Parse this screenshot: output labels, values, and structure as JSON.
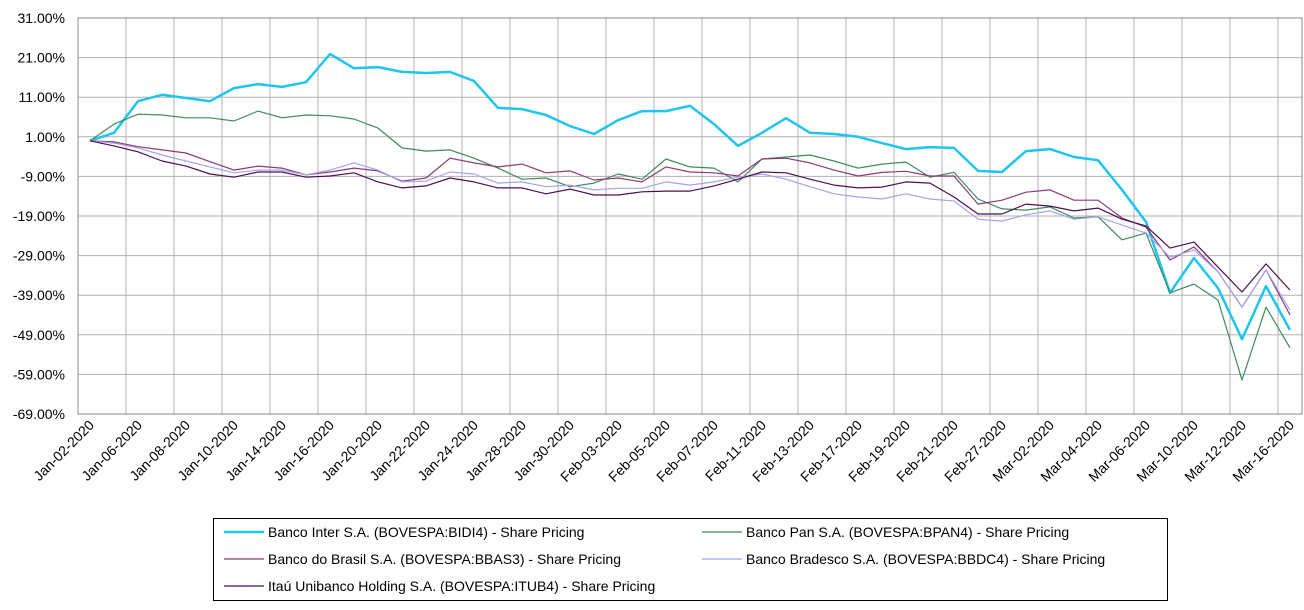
{
  "chart_data": {
    "type": "line",
    "title": "",
    "xlabel": "",
    "ylabel": "",
    "ylim": [
      -69,
      31
    ],
    "y_ticks": [
      "31.00%",
      "21.00%",
      "11.00%",
      "1.00%",
      "-9.00%",
      "-19.00%",
      "-29.00%",
      "-39.00%",
      "-49.00%",
      "-59.00%",
      "-69.00%"
    ],
    "y_tick_values": [
      31,
      21,
      11,
      1,
      -9,
      -19,
      -29,
      -39,
      -49,
      -59,
      -69
    ],
    "x_tick_labels": [
      "Jan-02-2020",
      "Jan-06-2020",
      "Jan-08-2020",
      "Jan-10-2020",
      "Jan-14-2020",
      "Jan-16-2020",
      "Jan-20-2020",
      "Jan-22-2020",
      "Jan-24-2020",
      "Jan-28-2020",
      "Jan-30-2020",
      "Feb-03-2020",
      "Feb-05-2020",
      "Feb-07-2020",
      "Feb-11-2020",
      "Feb-13-2020",
      "Feb-17-2020",
      "Feb-19-2020",
      "Feb-21-2020",
      "Feb-27-2020",
      "Mar-02-2020",
      "Mar-04-2020",
      "Mar-06-2020",
      "Mar-10-2020",
      "Mar-12-2020",
      "Mar-16-2020"
    ],
    "x": [
      "Jan-02-2020",
      "Jan-03-2020",
      "Jan-06-2020",
      "Jan-07-2020",
      "Jan-08-2020",
      "Jan-09-2020",
      "Jan-10-2020",
      "Jan-13-2020",
      "Jan-14-2020",
      "Jan-15-2020",
      "Jan-16-2020",
      "Jan-17-2020",
      "Jan-20-2020",
      "Jan-21-2020",
      "Jan-22-2020",
      "Jan-23-2020",
      "Jan-24-2020",
      "Jan-27-2020",
      "Jan-28-2020",
      "Jan-29-2020",
      "Jan-30-2020",
      "Jan-31-2020",
      "Feb-03-2020",
      "Feb-04-2020",
      "Feb-05-2020",
      "Feb-06-2020",
      "Feb-07-2020",
      "Feb-10-2020",
      "Feb-11-2020",
      "Feb-12-2020",
      "Feb-13-2020",
      "Feb-14-2020",
      "Feb-17-2020",
      "Feb-18-2020",
      "Feb-19-2020",
      "Feb-20-2020",
      "Feb-21-2020",
      "Feb-26-2020",
      "Feb-27-2020",
      "Feb-28-2020",
      "Mar-02-2020",
      "Mar-03-2020",
      "Mar-04-2020",
      "Mar-05-2020",
      "Mar-06-2020",
      "Mar-09-2020",
      "Mar-10-2020",
      "Mar-11-2020",
      "Mar-12-2020",
      "Mar-13-2020",
      "Mar-16-2020"
    ],
    "grid": true,
    "legend_position": "bottom",
    "series": [
      {
        "name": "Banco Inter S.A. (BOVESPA:BIDI4) - Share Pricing",
        "color": "#1ec5ef",
        "width": 2.5,
        "values": [
          0,
          2,
          10,
          11.6,
          10.8,
          10,
          13.3,
          14.3,
          13.6,
          14.8,
          21.9,
          18.3,
          18.6,
          17.4,
          17.1,
          17.4,
          15.1,
          8.3,
          8.0,
          6.5,
          3.7,
          1.7,
          5.2,
          7.5,
          7.5,
          8.8,
          4.2,
          -1.3,
          2.0,
          5.7,
          2.0,
          1.7,
          1.0,
          -0.6,
          -2.1,
          -1.6,
          -1.8,
          -7.6,
          -7.9,
          -2.6,
          -2.1,
          -4.1,
          -4.9,
          -12.4,
          -20.5,
          -38.4,
          -29.6,
          -37.2,
          -50.1,
          -36.7,
          -47.8
        ]
      },
      {
        "name": "Banco Pan S.A. (BOVESPA:BPAN4) - Share Pricing",
        "color": "#3d8c5f",
        "width": 1.2,
        "values": [
          0,
          4.2,
          6.7,
          6.5,
          5.8,
          5.8,
          5.0,
          7.5,
          5.8,
          6.5,
          6.3,
          5.5,
          3.2,
          -1.8,
          -2.6,
          -2.3,
          -4.4,
          -6.9,
          -9.7,
          -9.4,
          -11.6,
          -10.7,
          -8.4,
          -9.7,
          -4.6,
          -6.6,
          -6.9,
          -10.4,
          -4.6,
          -4.1,
          -3.6,
          -5.1,
          -6.9,
          -5.9,
          -5.4,
          -9.2,
          -8.0,
          -14.7,
          -17.2,
          -17.5,
          -16.7,
          -19.5,
          -19.2,
          -25.0,
          -23.3,
          -38.4,
          -36.2,
          -40.2,
          -60.4,
          -42.0,
          -52.3
        ]
      },
      {
        "name": "Banco do Brasil S.A. (BOVESPA:BBAS3) - Share Pricing",
        "color": "#8e3a72",
        "width": 1.2,
        "values": [
          0,
          -0.3,
          -1.5,
          -2.3,
          -3.1,
          -5.3,
          -7.4,
          -6.4,
          -6.9,
          -8.6,
          -7.9,
          -6.9,
          -7.6,
          -10.2,
          -9.4,
          -4.4,
          -5.6,
          -6.6,
          -5.9,
          -8.1,
          -7.6,
          -9.9,
          -9.4,
          -10.4,
          -6.6,
          -7.9,
          -8.1,
          -8.9,
          -4.6,
          -4.4,
          -5.6,
          -7.4,
          -8.9,
          -8.0,
          -7.7,
          -8.9,
          -8.9,
          -16.0,
          -15.0,
          -13.0,
          -12.4,
          -15.0,
          -15.0,
          -19.5,
          -21.8,
          -30.1,
          -26.8,
          -33.1,
          -42.0,
          -32.6,
          -44.0
        ]
      },
      {
        "name": "Banco Bradesco S.A. (BOVESPA:BBDC4) - Share Pricing",
        "color": "#a3a3f0",
        "width": 1.2,
        "values": [
          0,
          -0.6,
          -1.8,
          -3.6,
          -5.1,
          -6.6,
          -8.1,
          -7.4,
          -7.4,
          -8.6,
          -7.4,
          -5.6,
          -7.4,
          -10.4,
          -10.2,
          -7.9,
          -8.4,
          -10.7,
          -10.4,
          -11.6,
          -11.2,
          -12.4,
          -12.0,
          -12.0,
          -10.4,
          -11.2,
          -10.4,
          -9.2,
          -8.4,
          -9.7,
          -11.6,
          -13.4,
          -14.2,
          -14.7,
          -13.4,
          -14.7,
          -15.2,
          -19.8,
          -20.3,
          -18.7,
          -17.7,
          -19.8,
          -19.2,
          -21.3,
          -23.3,
          -29.4,
          -27.6,
          -33.1,
          -42.0,
          -32.6,
          -42.8
        ]
      },
      {
        "name": "Itaú Unibanco Holding S.A. (BOVESPA:ITUB4) - Share Pricing",
        "color": "#4e0f52",
        "width": 1.2,
        "values": [
          0,
          -1.3,
          -2.8,
          -5.1,
          -6.4,
          -8.4,
          -9.2,
          -7.9,
          -7.9,
          -9.2,
          -8.9,
          -8.1,
          -10.4,
          -11.9,
          -11.4,
          -9.4,
          -10.4,
          -11.9,
          -11.9,
          -13.4,
          -12.2,
          -13.7,
          -13.7,
          -12.9,
          -12.7,
          -12.7,
          -11.4,
          -9.7,
          -7.9,
          -8.1,
          -9.7,
          -11.2,
          -11.9,
          -11.7,
          -10.4,
          -10.7,
          -14.2,
          -18.5,
          -18.5,
          -16.0,
          -16.5,
          -17.7,
          -17.0,
          -19.8,
          -21.5,
          -27.1,
          -25.6,
          -31.9,
          -38.2,
          -31.1,
          -37.7
        ]
      }
    ]
  }
}
